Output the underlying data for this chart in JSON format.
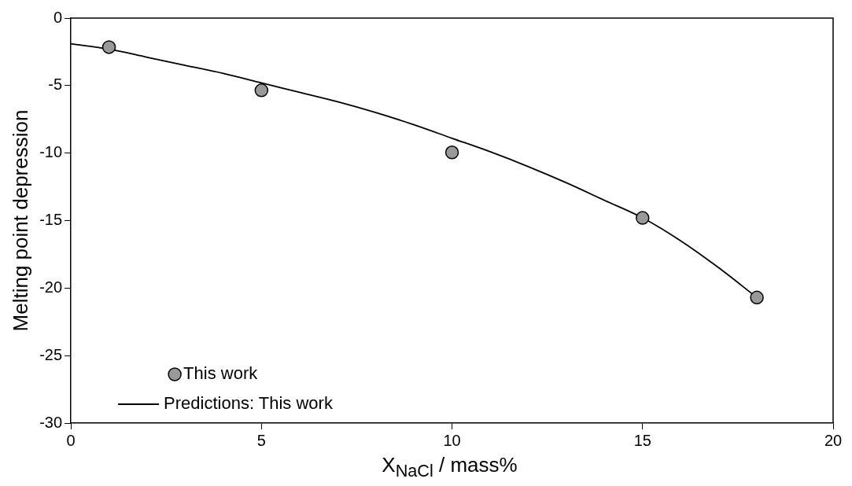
{
  "chart_data": {
    "type": "scatter",
    "xlabel": "X$_{NaCl}$ / mass%",
    "ylabel": "Melting point depression",
    "xlim": [
      0,
      20
    ],
    "xticks": [
      0,
      5,
      10,
      15,
      20
    ],
    "ylim": [
      -30,
      0
    ],
    "yticks": [
      -30,
      -25,
      -20,
      -15,
      -10,
      -5,
      0
    ],
    "grid": false,
    "legend": "bottom left",
    "series": [
      {
        "name": "This work",
        "marker": "circle",
        "color": "#999999",
        "x": [
          1,
          5,
          10,
          15,
          18
        ],
        "values": [
          -2.15,
          -5.35,
          -9.95,
          -14.8,
          -20.7
        ]
      },
      {
        "name": "Predictions: This work",
        "type": "line",
        "marker": "none",
        "line_style": "solid",
        "color": "#000000",
        "x": [
          0,
          1,
          2,
          3,
          4,
          5,
          6,
          7,
          8,
          9,
          10,
          11,
          12,
          13,
          14,
          15,
          16,
          17,
          18
        ],
        "values": [
          -1.9,
          -2.3,
          -2.9,
          -3.5,
          -4.1,
          -4.8,
          -5.5,
          -6.2,
          -7.0,
          -7.9,
          -8.9,
          -9.9,
          -11.0,
          -12.2,
          -13.5,
          -14.8,
          -16.5,
          -18.5,
          -20.7
        ]
      }
    ]
  }
}
